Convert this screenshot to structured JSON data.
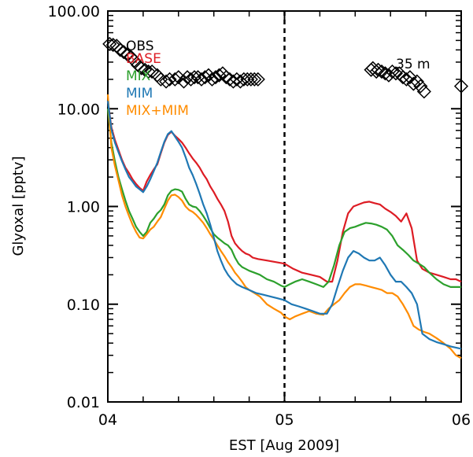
{
  "chart_data": {
    "type": "line",
    "xlabel": "EST [Aug 2009]",
    "ylabel": "Glyoxal [pptv]",
    "xlim": [
      4,
      6
    ],
    "ylim": [
      0.01,
      100
    ],
    "yscale": "log",
    "x_ticks": [
      {
        "value": 4,
        "label": "04"
      },
      {
        "value": 5,
        "label": "05"
      },
      {
        "value": 6,
        "label": "06"
      }
    ],
    "y_ticks": [
      {
        "value": 0.01,
        "label": "0.01"
      },
      {
        "value": 0.1,
        "label": "0.10"
      },
      {
        "value": 1,
        "label": "1.00"
      },
      {
        "value": 10,
        "label": "10.00"
      },
      {
        "value": 100,
        "label": "100.00"
      }
    ],
    "vline": 5,
    "annotation": "35  m",
    "legend_position": "top-left",
    "series": [
      {
        "name": "OBS",
        "color": "#000000",
        "style": "diamond",
        "x": [
          4.01,
          4.03,
          4.05,
          4.07,
          4.09,
          4.11,
          4.13,
          4.15,
          4.17,
          4.19,
          4.21,
          4.23,
          4.25,
          4.28,
          4.3,
          4.33,
          4.35,
          4.38,
          4.4,
          4.43,
          4.45,
          4.47,
          4.49,
          4.51,
          4.53,
          4.55,
          4.57,
          4.59,
          4.61,
          4.63,
          4.65,
          4.67,
          4.69,
          4.71,
          4.73,
          4.75,
          4.77,
          4.79,
          4.81,
          4.83,
          4.85,
          5.49,
          5.5,
          5.52,
          5.53,
          5.55,
          5.57,
          5.59,
          5.61,
          5.63,
          5.65,
          5.67,
          5.69,
          5.71,
          5.73,
          5.75,
          5.77,
          5.79,
          6.0
        ],
        "y": [
          46,
          45,
          44,
          40,
          38,
          36,
          34,
          31,
          28,
          26,
          25,
          24,
          24,
          22,
          20,
          19,
          20,
          20,
          21,
          19,
          21,
          20,
          21,
          21,
          20,
          21,
          22,
          20,
          21,
          22,
          23,
          21,
          20,
          19,
          20,
          19,
          20,
          20,
          20,
          20,
          20,
          25,
          26,
          24,
          25,
          24,
          23,
          22,
          24,
          23,
          23,
          21,
          20,
          21,
          18,
          19,
          17,
          15,
          17
        ]
      },
      {
        "name": "BASE",
        "color": "#dd1c24",
        "style": "line",
        "x": [
          4.0,
          4.02,
          4.04,
          4.06,
          4.08,
          4.1,
          4.12,
          4.14,
          4.16,
          4.18,
          4.2,
          4.22,
          4.24,
          4.26,
          4.28,
          4.3,
          4.32,
          4.34,
          4.36,
          4.38,
          4.4,
          4.42,
          4.44,
          4.46,
          4.48,
          4.5,
          4.52,
          4.54,
          4.56,
          4.58,
          4.6,
          4.62,
          4.64,
          4.66,
          4.68,
          4.7,
          4.72,
          4.74,
          4.76,
          4.78,
          4.8,
          4.82,
          4.85,
          4.9,
          4.95,
          5.0,
          5.05,
          5.1,
          5.15,
          5.2,
          5.24,
          5.27,
          5.3,
          5.33,
          5.36,
          5.39,
          5.42,
          5.45,
          5.48,
          5.51,
          5.54,
          5.57,
          5.6,
          5.63,
          5.66,
          5.69,
          5.72,
          5.75,
          5.78,
          5.82,
          5.86,
          5.9,
          5.94,
          5.97,
          6.0
        ],
        "y": [
          12,
          6.5,
          4.8,
          3.8,
          3.0,
          2.5,
          2.2,
          1.9,
          1.7,
          1.55,
          1.45,
          1.8,
          2.1,
          2.4,
          2.7,
          3.5,
          4.5,
          5.4,
          5.8,
          5.3,
          4.9,
          4.5,
          4.0,
          3.5,
          3.1,
          2.8,
          2.5,
          2.15,
          1.9,
          1.6,
          1.4,
          1.2,
          1.05,
          0.9,
          0.7,
          0.5,
          0.42,
          0.38,
          0.35,
          0.33,
          0.32,
          0.3,
          0.29,
          0.28,
          0.27,
          0.26,
          0.23,
          0.21,
          0.2,
          0.19,
          0.17,
          0.17,
          0.28,
          0.55,
          0.85,
          1.0,
          1.05,
          1.1,
          1.12,
          1.08,
          1.05,
          0.95,
          0.88,
          0.8,
          0.7,
          0.85,
          0.6,
          0.28,
          0.23,
          0.21,
          0.2,
          0.19,
          0.18,
          0.18,
          0.17
        ]
      },
      {
        "name": "MIX",
        "color": "#2ca02c",
        "style": "line",
        "x": [
          4.0,
          4.02,
          4.04,
          4.06,
          4.08,
          4.1,
          4.12,
          4.14,
          4.16,
          4.18,
          4.2,
          4.22,
          4.24,
          4.26,
          4.28,
          4.3,
          4.32,
          4.34,
          4.36,
          4.38,
          4.4,
          4.42,
          4.44,
          4.46,
          4.48,
          4.5,
          4.52,
          4.54,
          4.56,
          4.58,
          4.6,
          4.62,
          4.64,
          4.66,
          4.68,
          4.7,
          4.72,
          4.74,
          4.76,
          4.78,
          4.8,
          4.83,
          4.86,
          4.9,
          4.94,
          4.98,
          5.0,
          5.03,
          5.06,
          5.1,
          5.14,
          5.18,
          5.22,
          5.25,
          5.28,
          5.31,
          5.34,
          5.37,
          5.4,
          5.43,
          5.46,
          5.49,
          5.52,
          5.55,
          5.58,
          5.61,
          5.64,
          5.67,
          5.7,
          5.73,
          5.76,
          5.79,
          5.82,
          5.86,
          5.9,
          5.94,
          5.97,
          6.0
        ],
        "y": [
          10,
          4.5,
          2.9,
          2.0,
          1.5,
          1.15,
          0.9,
          0.75,
          0.62,
          0.55,
          0.5,
          0.55,
          0.68,
          0.75,
          0.85,
          0.92,
          1.05,
          1.3,
          1.45,
          1.5,
          1.48,
          1.42,
          1.2,
          1.05,
          1.0,
          0.98,
          0.9,
          0.8,
          0.7,
          0.6,
          0.52,
          0.48,
          0.45,
          0.42,
          0.4,
          0.36,
          0.3,
          0.26,
          0.24,
          0.23,
          0.22,
          0.21,
          0.2,
          0.18,
          0.17,
          0.155,
          0.15,
          0.16,
          0.17,
          0.18,
          0.17,
          0.16,
          0.15,
          0.17,
          0.25,
          0.4,
          0.55,
          0.6,
          0.62,
          0.65,
          0.68,
          0.67,
          0.65,
          0.62,
          0.58,
          0.5,
          0.4,
          0.36,
          0.32,
          0.28,
          0.26,
          0.24,
          0.21,
          0.18,
          0.16,
          0.15,
          0.15,
          0.15
        ]
      },
      {
        "name": "MIM",
        "color": "#1f78b4",
        "style": "line",
        "x": [
          4.0,
          4.02,
          4.04,
          4.06,
          4.08,
          4.1,
          4.12,
          4.14,
          4.16,
          4.18,
          4.2,
          4.22,
          4.24,
          4.26,
          4.28,
          4.3,
          4.32,
          4.34,
          4.36,
          4.38,
          4.4,
          4.42,
          4.44,
          4.46,
          4.48,
          4.5,
          4.52,
          4.54,
          4.56,
          4.58,
          4.6,
          4.62,
          4.64,
          4.66,
          4.68,
          4.7,
          4.73,
          4.76,
          4.8,
          4.84,
          4.88,
          4.92,
          4.96,
          5.0,
          5.04,
          5.08,
          5.12,
          5.16,
          5.2,
          5.24,
          5.27,
          5.3,
          5.33,
          5.36,
          5.39,
          5.42,
          5.45,
          5.48,
          5.51,
          5.54,
          5.57,
          5.6,
          5.63,
          5.66,
          5.69,
          5.72,
          5.75,
          5.78,
          5.82,
          5.86,
          5.9,
          5.94,
          5.97,
          6.0
        ],
        "y": [
          12,
          6.2,
          4.5,
          3.6,
          2.9,
          2.4,
          2.0,
          1.8,
          1.6,
          1.5,
          1.4,
          1.6,
          1.9,
          2.3,
          2.8,
          3.6,
          4.6,
          5.5,
          5.9,
          5.2,
          4.6,
          4.0,
          3.2,
          2.5,
          2.1,
          1.7,
          1.35,
          1.05,
          0.85,
          0.65,
          0.48,
          0.35,
          0.28,
          0.23,
          0.2,
          0.18,
          0.16,
          0.15,
          0.14,
          0.13,
          0.125,
          0.12,
          0.115,
          0.11,
          0.1,
          0.095,
          0.09,
          0.085,
          0.08,
          0.08,
          0.1,
          0.15,
          0.22,
          0.3,
          0.35,
          0.33,
          0.3,
          0.28,
          0.28,
          0.3,
          0.25,
          0.2,
          0.17,
          0.17,
          0.15,
          0.13,
          0.1,
          0.05,
          0.044,
          0.041,
          0.039,
          0.037,
          0.036,
          0.035
        ]
      },
      {
        "name": "MIX+MIM",
        "color": "#ff8c00",
        "style": "line",
        "x": [
          4.0,
          4.02,
          4.04,
          4.06,
          4.08,
          4.1,
          4.12,
          4.14,
          4.16,
          4.18,
          4.2,
          4.22,
          4.24,
          4.26,
          4.28,
          4.3,
          4.32,
          4.34,
          4.36,
          4.38,
          4.4,
          4.42,
          4.44,
          4.46,
          4.48,
          4.5,
          4.52,
          4.54,
          4.56,
          4.58,
          4.6,
          4.62,
          4.64,
          4.66,
          4.68,
          4.7,
          4.72,
          4.74,
          4.76,
          4.78,
          4.8,
          4.83,
          4.86,
          4.9,
          4.94,
          4.98,
          5.0,
          5.03,
          5.06,
          5.1,
          5.14,
          5.18,
          5.22,
          5.25,
          5.28,
          5.31,
          5.34,
          5.37,
          5.4,
          5.43,
          5.46,
          5.49,
          5.52,
          5.55,
          5.58,
          5.61,
          5.64,
          5.67,
          5.7,
          5.73,
          5.76,
          5.79,
          5.82,
          5.86,
          5.9,
          5.94,
          5.97,
          6.0
        ],
        "y": [
          14,
          4.0,
          2.6,
          1.85,
          1.3,
          1.0,
          0.8,
          0.65,
          0.55,
          0.48,
          0.47,
          0.52,
          0.58,
          0.62,
          0.7,
          0.78,
          0.95,
          1.15,
          1.3,
          1.32,
          1.25,
          1.15,
          1.0,
          0.92,
          0.88,
          0.82,
          0.75,
          0.68,
          0.6,
          0.52,
          0.46,
          0.4,
          0.35,
          0.31,
          0.27,
          0.24,
          0.21,
          0.19,
          0.17,
          0.15,
          0.14,
          0.13,
          0.12,
          0.1,
          0.09,
          0.082,
          0.075,
          0.07,
          0.075,
          0.08,
          0.085,
          0.08,
          0.078,
          0.09,
          0.1,
          0.11,
          0.13,
          0.15,
          0.16,
          0.16,
          0.155,
          0.15,
          0.145,
          0.14,
          0.13,
          0.13,
          0.12,
          0.1,
          0.08,
          0.06,
          0.055,
          0.052,
          0.05,
          0.045,
          0.04,
          0.035,
          0.03,
          0.028
        ]
      }
    ]
  }
}
